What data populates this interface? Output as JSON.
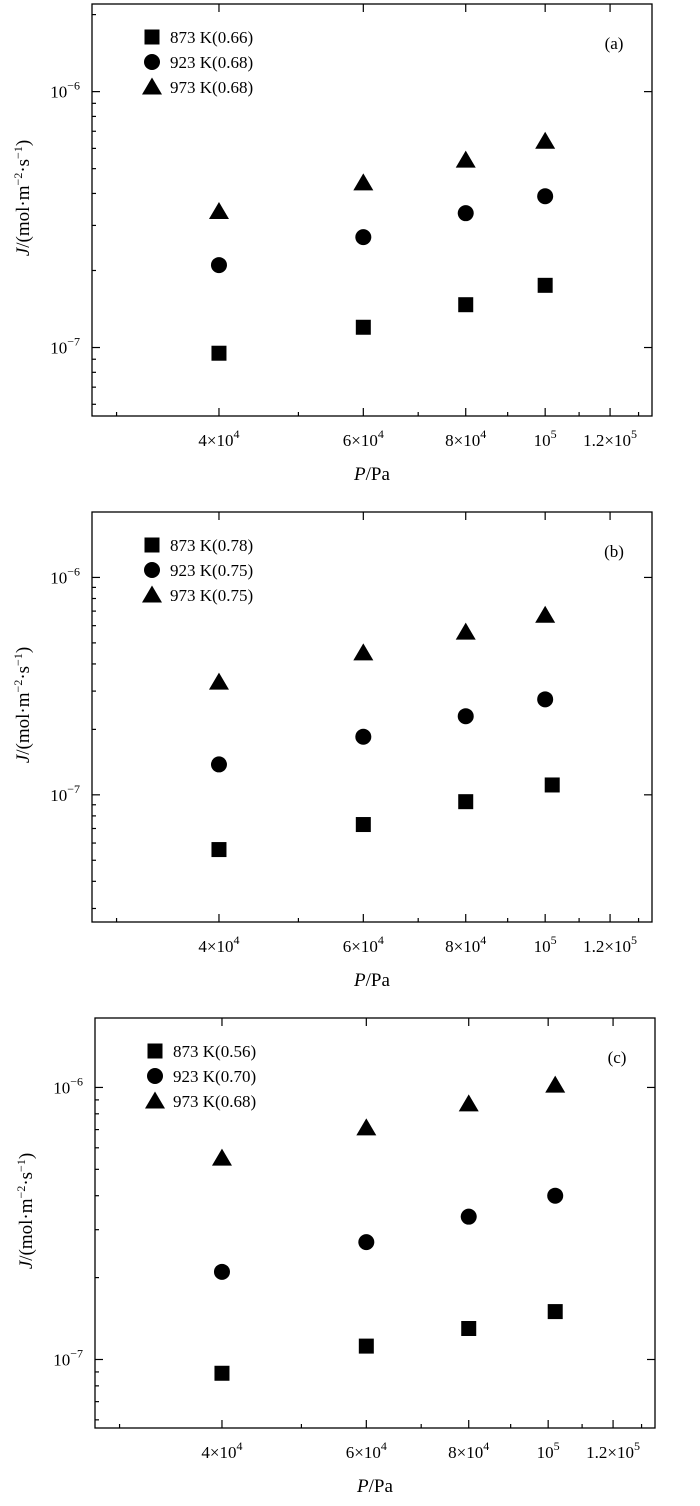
{
  "chart_data": [
    {
      "type": "scatter",
      "panel_label": "(a)",
      "xlabel": {
        "italic": "P",
        "rest": "/Pa"
      },
      "ylabel": {
        "italic": "J",
        "rest": "/(mol·m",
        "sup1": "−2",
        "mid": "·s",
        "sup2": "−1",
        "end": ")"
      },
      "xscale": "log",
      "yscale": "log",
      "xlim": [
        28000,
        135000
      ],
      "ylim": [
        5.4e-08,
        2.2e-06
      ],
      "x_ticks": [
        {
          "value": 40000,
          "base": "4×10",
          "exp": "4"
        },
        {
          "value": 60000,
          "base": "6×10",
          "exp": "4"
        },
        {
          "value": 80000,
          "base": "8×10",
          "exp": "4"
        },
        {
          "value": 100000,
          "base": "10",
          "exp": "5"
        },
        {
          "value": 120000,
          "base": "1.2×10",
          "exp": "5"
        }
      ],
      "y_ticks": [
        {
          "value": 1e-07,
          "base": "10",
          "exp": "−7"
        },
        {
          "value": 1e-06,
          "base": "10",
          "exp": "−6"
        }
      ],
      "legend_position": "top-left",
      "series": [
        {
          "name": "873 K(0.66)",
          "marker": "square",
          "x": [
            40000,
            60000,
            80000,
            100000
          ],
          "y": [
            9.5e-08,
            1.2e-07,
            1.47e-07,
            1.75e-07
          ]
        },
        {
          "name": "923 K(0.68)",
          "marker": "circle",
          "x": [
            40000,
            60000,
            80000,
            100000
          ],
          "y": [
            2.1e-07,
            2.7e-07,
            3.35e-07,
            3.9e-07
          ]
        },
        {
          "name": "973 K(0.68)",
          "marker": "triangle",
          "x": [
            40000,
            60000,
            80000,
            100000
          ],
          "y": [
            3.4e-07,
            4.4e-07,
            5.4e-07,
            6.4e-07
          ]
        }
      ]
    },
    {
      "type": "scatter",
      "panel_label": "(b)",
      "xlabel": {
        "italic": "P",
        "rest": "/Pa"
      },
      "ylabel": {
        "italic": "J",
        "rest": "/(mol·m",
        "sup1": "−2",
        "mid": "·s",
        "sup2": "−1",
        "end": ")"
      },
      "xscale": "log",
      "yscale": "log",
      "xlim": [
        28000,
        135000
      ],
      "ylim": [
        2.6e-08,
        2e-06
      ],
      "x_ticks": [
        {
          "value": 40000,
          "base": "4×10",
          "exp": "4"
        },
        {
          "value": 60000,
          "base": "6×10",
          "exp": "4"
        },
        {
          "value": 80000,
          "base": "8×10",
          "exp": "4"
        },
        {
          "value": 100000,
          "base": "10",
          "exp": "5"
        },
        {
          "value": 120000,
          "base": "1.2×10",
          "exp": "5"
        }
      ],
      "y_ticks": [
        {
          "value": 1e-07,
          "base": "10",
          "exp": "−7"
        },
        {
          "value": 1e-06,
          "base": "10",
          "exp": "−6"
        }
      ],
      "legend_position": "top-left",
      "series": [
        {
          "name": "873 K(0.78)",
          "marker": "square",
          "x": [
            40000,
            60000,
            80000,
            102000
          ],
          "y": [
            5.6e-08,
            7.3e-08,
            9.3e-08,
            1.11e-07
          ]
        },
        {
          "name": "923 K(0.75)",
          "marker": "circle",
          "x": [
            40000,
            60000,
            80000,
            100000
          ],
          "y": [
            1.38e-07,
            1.85e-07,
            2.3e-07,
            2.75e-07
          ]
        },
        {
          "name": "973 K(0.75)",
          "marker": "triangle",
          "x": [
            40000,
            60000,
            80000,
            100000
          ],
          "y": [
            3.3e-07,
            4.5e-07,
            5.6e-07,
            6.7e-07
          ]
        }
      ]
    },
    {
      "type": "scatter",
      "panel_label": "(c)",
      "xlabel": {
        "italic": "P",
        "rest": "/Pa"
      },
      "ylabel": {
        "italic": "J",
        "rest": "/(mol·m",
        "sup1": "−2",
        "mid": "·s",
        "sup2": "−1",
        "end": ")"
      },
      "xscale": "log",
      "yscale": "log",
      "xlim": [
        28000,
        135000
      ],
      "ylim": [
        5.6e-08,
        1.8e-06
      ],
      "x_ticks": [
        {
          "value": 40000,
          "base": "4×10",
          "exp": "4"
        },
        {
          "value": 60000,
          "base": "6×10",
          "exp": "4"
        },
        {
          "value": 80000,
          "base": "8×10",
          "exp": "4"
        },
        {
          "value": 100000,
          "base": "10",
          "exp": "5"
        },
        {
          "value": 120000,
          "base": "1.2×10",
          "exp": "5"
        }
      ],
      "y_ticks": [
        {
          "value": 1e-07,
          "base": "10",
          "exp": "−7"
        },
        {
          "value": 1e-06,
          "base": "10",
          "exp": "−6"
        }
      ],
      "legend_position": "top-left",
      "series": [
        {
          "name": "873 K(0.56)",
          "marker": "square",
          "x": [
            40000,
            60000,
            80000,
            102000
          ],
          "y": [
            8.9e-08,
            1.12e-07,
            1.3e-07,
            1.5e-07
          ]
        },
        {
          "name": "923 K(0.70)",
          "marker": "circle",
          "x": [
            40000,
            60000,
            80000,
            102000
          ],
          "y": [
            2.1e-07,
            2.7e-07,
            3.35e-07,
            4e-07
          ]
        },
        {
          "name": "973 K(0.68)",
          "marker": "triangle",
          "x": [
            40000,
            60000,
            80000,
            102000
          ],
          "y": [
            5.5e-07,
            7.1e-07,
            8.7e-07,
            1.02e-06
          ]
        }
      ]
    }
  ]
}
